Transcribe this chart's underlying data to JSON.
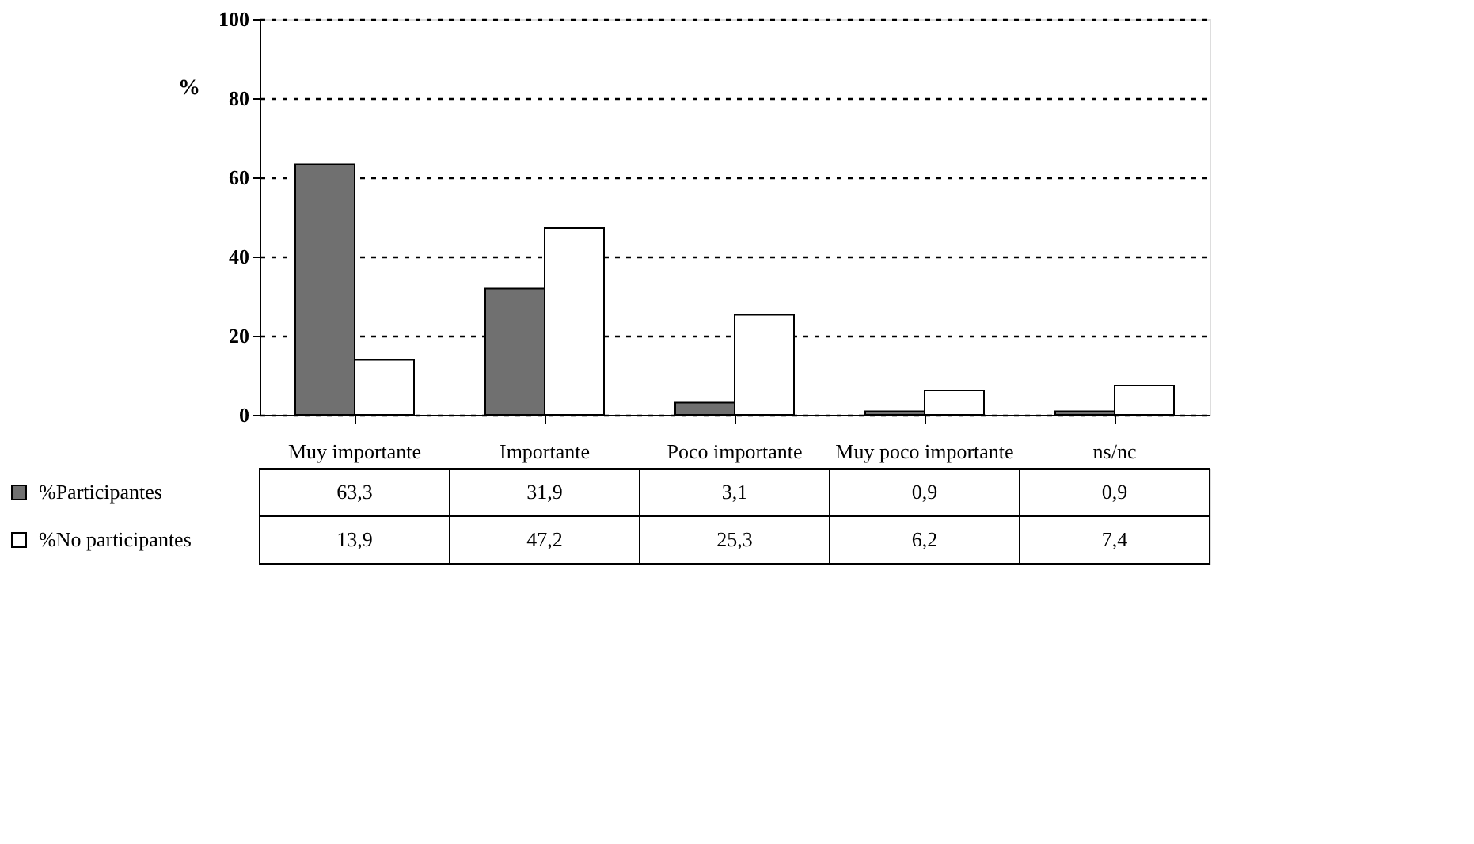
{
  "chart_data": {
    "type": "bar",
    "ylabel": "%",
    "categories": [
      "Muy importante",
      "Importante",
      "Poco importante",
      "Muy poco importante",
      "ns/nc"
    ],
    "series": [
      {
        "name": "%Participantes",
        "color": "#707070",
        "values": [
          63.3,
          31.9,
          3.1,
          0.9,
          0.9
        ],
        "value_labels": [
          "63,3",
          "31,9",
          "3,1",
          "0,9",
          "0,9"
        ]
      },
      {
        "name": "%No participantes",
        "color": "#ffffff",
        "values": [
          13.9,
          47.2,
          25.3,
          6.2,
          7.4
        ],
        "value_labels": [
          "13,9",
          "47,2",
          "25,3",
          "6,2",
          "7,4"
        ]
      }
    ],
    "ylim": [
      0,
      100
    ],
    "yticks": [
      0,
      20,
      40,
      60,
      80,
      100
    ],
    "grid": "y",
    "line_style": "dotted",
    "legend": "bottom left"
  }
}
